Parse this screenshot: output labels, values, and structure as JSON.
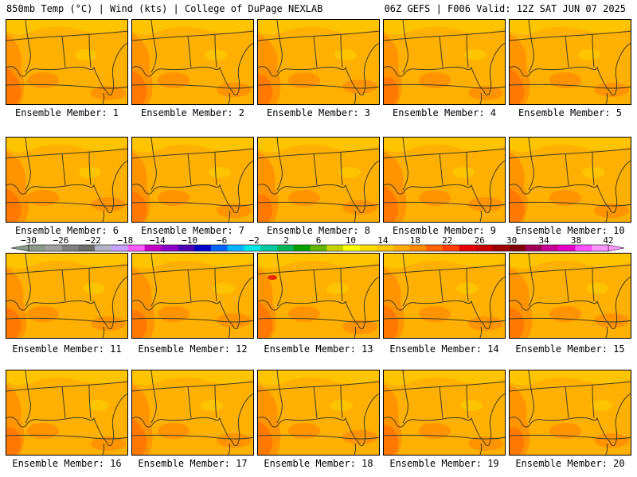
{
  "header": {
    "left": "850mb Temp (°C) | Wind (kts) | College of DuPage NEXLAB",
    "right": "06Z GEFS | F006 Valid: 12Z SAT JUN 07 2025"
  },
  "member_label_prefix": "Ensemble Member:",
  "members": [
    {
      "number": "1"
    },
    {
      "number": "2"
    },
    {
      "number": "3"
    },
    {
      "number": "4"
    },
    {
      "number": "5"
    },
    {
      "number": "6"
    },
    {
      "number": "7"
    },
    {
      "number": "8"
    },
    {
      "number": "9"
    },
    {
      "number": "10"
    },
    {
      "number": "11"
    },
    {
      "number": "12"
    },
    {
      "number": "13"
    },
    {
      "number": "14"
    },
    {
      "number": "15"
    },
    {
      "number": "16"
    },
    {
      "number": "17"
    },
    {
      "number": "18"
    },
    {
      "number": "19"
    },
    {
      "number": "20"
    }
  ],
  "colorbar": {
    "tick_labels": [
      "−30",
      "−26",
      "−22",
      "−18",
      "−14",
      "−10",
      "−6",
      "−2",
      "2",
      "6",
      "10",
      "14",
      "18",
      "22",
      "26",
      "30",
      "34",
      "38",
      "42"
    ],
    "colors": [
      "#8c9a8c",
      "#a0a0a0",
      "#808080",
      "#6c6c6c",
      "#b4b4c8",
      "#c8a0ff",
      "#ff5aff",
      "#c400c4",
      "#8c00c8",
      "#5000b4",
      "#0000c8",
      "#0064ff",
      "#00b4ff",
      "#00e6e6",
      "#00c8a0",
      "#00b45a",
      "#00a000",
      "#64b400",
      "#c8d200",
      "#ffff00",
      "#ffdc00",
      "#ffc800",
      "#ffaa00",
      "#ff8c00",
      "#ff6400",
      "#ff3c00",
      "#e60000",
      "#c80000",
      "#a00000",
      "#820000",
      "#a0005a",
      "#c80096",
      "#e600c8",
      "#ff50ff",
      "#ff96ff"
    ]
  },
  "map_colors": {
    "base": "#ffb000",
    "warm": "#ff9400",
    "hot": "#ff7800",
    "cool": "#ffc400",
    "hotspot": "#e62800",
    "line": "#3c3c28"
  }
}
